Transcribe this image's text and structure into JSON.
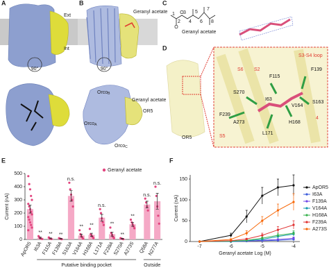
{
  "panels": {
    "A": {
      "letter": "A",
      "ext": "Ext",
      "int": "Int",
      "rotation": "90°"
    },
    "B": {
      "letter": "B",
      "ligand": "Geranyl acetate",
      "rotation": "90°",
      "OR5": "OR5",
      "orco": [
        {
          "name": "Orco",
          "sub": "B"
        },
        {
          "name": "Orco",
          "sub": "A"
        },
        {
          "name": "Orco",
          "sub": "C"
        }
      ]
    },
    "C": {
      "letter": "C",
      "label": "Geranyl acetate",
      "atoms": [
        "O",
        "O"
      ],
      "numbers": [
        "1",
        "2",
        "3",
        "4",
        "5",
        "6",
        "7",
        "8"
      ]
    },
    "D": {
      "letter": "D",
      "OR5": "OR5",
      "labels": [
        {
          "text": "S3-S4 loop",
          "color": "#e03c31"
        },
        {
          "text": "S6",
          "color": "#e03c31"
        },
        {
          "text": "S2",
          "color": "#e03c31"
        },
        {
          "text": "F115",
          "color": "#111"
        },
        {
          "text": "F139",
          "color": "#111"
        },
        {
          "text": "S270",
          "color": "#111"
        },
        {
          "text": "I63",
          "color": "#111"
        },
        {
          "text": "V164",
          "color": "#111"
        },
        {
          "text": "S163",
          "color": "#111"
        },
        {
          "text": "F239",
          "color": "#111"
        },
        {
          "text": "A273",
          "color": "#111"
        },
        {
          "text": "H168",
          "color": "#111"
        },
        {
          "text": "L171",
          "color": "#111"
        },
        {
          "text": "S5",
          "color": "#e03c31"
        },
        {
          "text": "4",
          "color": "#e03c31"
        }
      ]
    },
    "E": {
      "letter": "E",
      "groups": [
        "Putative binding pocket",
        "Outside"
      ]
    },
    "F": {
      "letter": "F"
    }
  },
  "chart_data": [
    {
      "type": "bar",
      "ylabel": "Current (nA)",
      "legend": "Geranyl acetate",
      "color": "#f5a9c6",
      "point_color": "#e2457f",
      "categories": [
        "ApOR5",
        "I63A",
        "F115A",
        "F139A",
        "S163A",
        "V164A",
        "H168A",
        "L171A",
        "F239A",
        "S270A",
        "A273S",
        "Q58A",
        "N277A"
      ],
      "values": [
        230,
        12,
        8,
        6,
        330,
        30,
        35,
        165,
        40,
        6,
        115,
        265,
        290
      ],
      "errors": [
        30,
        5,
        3,
        2,
        40,
        10,
        12,
        25,
        15,
        2,
        15,
        25,
        60
      ],
      "points": [
        [
          480,
          420,
          380,
          330,
          300,
          270,
          250,
          230,
          210,
          190,
          170,
          150,
          130,
          110,
          90,
          70
        ],
        [
          25,
          15,
          8,
          5,
          3
        ],
        [
          15,
          8,
          5,
          3
        ],
        [
          10,
          6,
          4,
          2
        ],
        [
          430,
          380,
          340,
          300,
          250
        ],
        [
          70,
          40,
          25,
          15,
          5
        ],
        [
          80,
          40,
          30,
          20,
          10
        ],
        [
          230,
          200,
          160,
          130,
          110
        ],
        [
          90,
          50,
          35,
          20,
          10
        ],
        [
          10,
          6,
          4,
          2
        ],
        [
          150,
          130,
          115,
          100,
          85
        ],
        [
          310,
          280,
          250,
          220
        ],
        [
          400,
          330,
          250,
          180,
          120
        ]
      ],
      "annotations": [
        null,
        "**",
        "**",
        "**",
        "n.s.",
        "**",
        "**",
        "n.s.",
        "**",
        "**",
        "**",
        "n.s.",
        "n.s."
      ],
      "ylim": [
        0,
        500
      ],
      "yticks": [
        0,
        100,
        200,
        300,
        400,
        500
      ]
    },
    {
      "type": "line",
      "xlabel": "Geranyl acetate Log (M)",
      "ylabel": "Current (nA)",
      "x": [
        -7,
        -6,
        -5.5,
        -5,
        -4.5,
        -4
      ],
      "series": [
        {
          "name": "ApOR5",
          "color": "#111111",
          "values": [
            0,
            15,
            60,
            110,
            130,
            135
          ],
          "errors": [
            0,
            5,
            15,
            20,
            20,
            25
          ]
        },
        {
          "name": "I63A",
          "color": "#3b5bdb",
          "values": [
            0,
            0,
            1,
            2,
            3,
            5
          ],
          "errors": [
            0,
            0,
            1,
            1,
            1,
            2
          ]
        },
        {
          "name": "F139A",
          "color": "#7048e8",
          "values": [
            0,
            0,
            1,
            3,
            5,
            8
          ],
          "errors": [
            0,
            0,
            1,
            1,
            2,
            3
          ]
        },
        {
          "name": "V164A",
          "color": "#1098ad",
          "values": [
            0,
            0,
            2,
            5,
            12,
            18
          ],
          "errors": [
            0,
            0,
            1,
            2,
            4,
            5
          ]
        },
        {
          "name": "H168A",
          "color": "#37b24d",
          "values": [
            0,
            1,
            3,
            8,
            15,
            20
          ],
          "errors": [
            0,
            1,
            1,
            3,
            5,
            6
          ]
        },
        {
          "name": "F239A",
          "color": "#e03131",
          "values": [
            0,
            2,
            6,
            15,
            28,
            40
          ],
          "errors": [
            0,
            1,
            2,
            5,
            8,
            10
          ]
        },
        {
          "name": "A273S",
          "color": "#f76707",
          "values": [
            0,
            5,
            20,
            50,
            75,
            95
          ],
          "errors": [
            0,
            2,
            6,
            10,
            15,
            20
          ]
        }
      ],
      "xlim": [
        -7.3,
        -3.8
      ],
      "xticks": [
        -7,
        -6,
        -5,
        -4
      ],
      "ylim": [
        0,
        160
      ],
      "yticks": [
        0,
        50,
        100,
        150
      ]
    }
  ]
}
